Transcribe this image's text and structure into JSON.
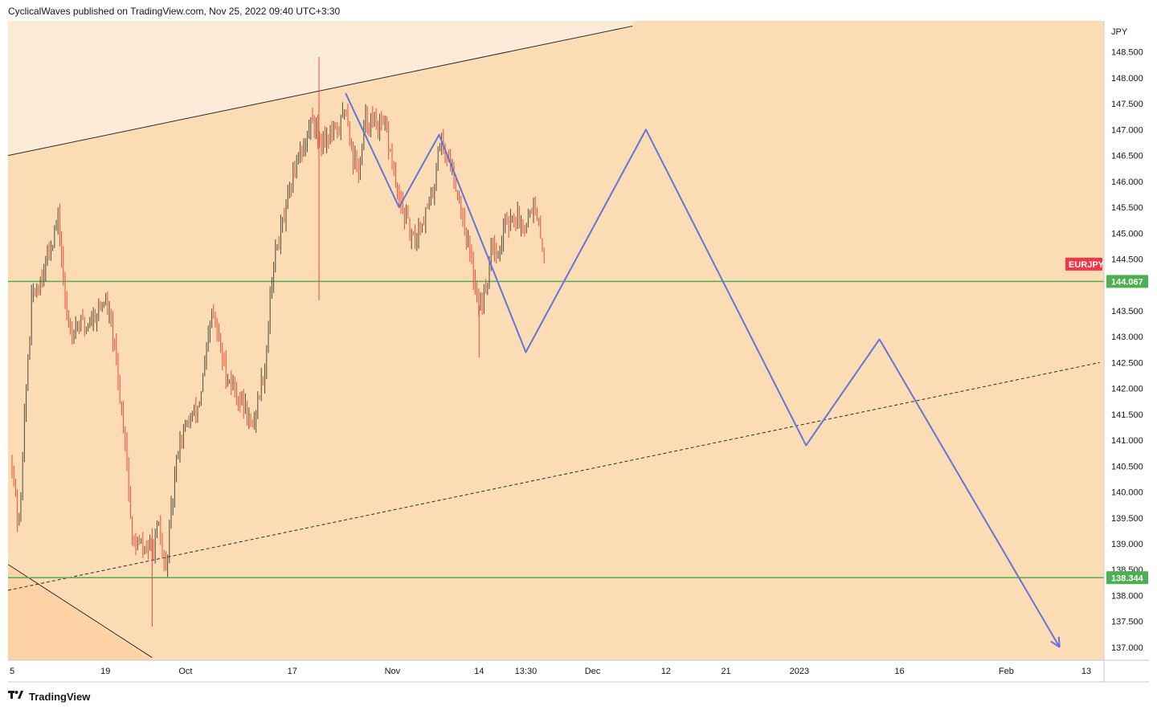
{
  "header": {
    "publisher_line": "CyclicalWaves published on TradingView.com, Nov 25, 2022 09:40 UTC+3:30"
  },
  "footer": {
    "brand": "TradingView"
  },
  "colors": {
    "plot_bg": "#fbdcb4",
    "channel_above": "#fcebd9",
    "channel_below": "#fdd2a4",
    "up_candle": "#4a4a3e",
    "down_candle": "#f04a36",
    "projection": "#6474d8",
    "level_line": "#4caf50",
    "symbol_badge": "#f23645",
    "level_badge": "#4caf50"
  },
  "chart_data": {
    "type": "candlestick",
    "symbol": "EURJPY",
    "currency_label": "JPY",
    "y_range": [
      136.75,
      149.1
    ],
    "y_ticks": [
      "148.500",
      "148.000",
      "147.500",
      "147.000",
      "146.500",
      "146.000",
      "145.500",
      "145.000",
      "144.500",
      "143.500",
      "143.000",
      "142.500",
      "142.000",
      "141.500",
      "141.000",
      "140.500",
      "140.000",
      "139.500",
      "139.000",
      "138.500",
      "138.000",
      "137.500",
      "137.000"
    ],
    "x_ticks": [
      "5",
      "19",
      "Oct",
      "17",
      "Nov",
      "14",
      "13:30",
      "Dec",
      "12",
      "21",
      "2023",
      "16",
      "Feb",
      "13"
    ],
    "price_path": [
      {
        "x": "Sep 5",
        "y": 140.6
      },
      {
        "x": "Sep 6",
        "y": 139.2
      },
      {
        "x": "Sep 7",
        "y": 141.8
      },
      {
        "x": "Sep 8",
        "y": 143.8
      },
      {
        "x": "Sep 9",
        "y": 144.0
      },
      {
        "x": "Sep 12",
        "y": 145.3
      },
      {
        "x": "Sep 13",
        "y": 143.5
      },
      {
        "x": "Sep 14",
        "y": 143.1
      },
      {
        "x": "Sep 15",
        "y": 143.3
      },
      {
        "x": "Sep 16",
        "y": 143.2
      },
      {
        "x": "Sep 19",
        "y": 143.7
      },
      {
        "x": "Sep 20",
        "y": 143.1
      },
      {
        "x": "Sep 21",
        "y": 142.0
      },
      {
        "x": "Sep 22",
        "y": 141.0
      },
      {
        "x": "Sep 23",
        "y": 139.0
      },
      {
        "x": "Sep 26",
        "y": 138.9
      },
      {
        "x": "Sep 27",
        "y": 139.3
      },
      {
        "x": "Sep 28",
        "y": 138.4
      },
      {
        "x": "Sep 29",
        "y": 139.8
      },
      {
        "x": "Sep 30",
        "y": 141.0
      },
      {
        "x": "Oct 3",
        "y": 141.7
      },
      {
        "x": "Oct 4",
        "y": 142.5
      },
      {
        "x": "Oct 5",
        "y": 143.5
      },
      {
        "x": "Oct 6",
        "y": 142.9
      },
      {
        "x": "Oct 7",
        "y": 142.3
      },
      {
        "x": "Oct 10",
        "y": 141.6
      },
      {
        "x": "Oct 11",
        "y": 141.2
      },
      {
        "x": "Oct 12",
        "y": 141.9
      },
      {
        "x": "Oct 13",
        "y": 142.5
      },
      {
        "x": "Oct 14",
        "y": 144.3
      },
      {
        "x": "Oct 17",
        "y": 146.0
      },
      {
        "x": "Oct 18",
        "y": 146.6
      },
      {
        "x": "Oct 19",
        "y": 146.7
      },
      {
        "x": "Oct 20",
        "y": 147.3
      },
      {
        "x": "Oct 21",
        "y": 146.8
      },
      {
        "x": "Oct 24",
        "y": 147.0
      },
      {
        "x": "Oct 25",
        "y": 147.5
      },
      {
        "x": "Oct 26",
        "y": 146.5
      },
      {
        "x": "Oct 27",
        "y": 146.2
      },
      {
        "x": "Oct 28",
        "y": 147.2
      },
      {
        "x": "Oct 31",
        "y": 147.0
      },
      {
        "x": "Nov 1",
        "y": 146.3
      },
      {
        "x": "Nov 2",
        "y": 145.6
      },
      {
        "x": "Nov 3",
        "y": 145.3
      },
      {
        "x": "Nov 4",
        "y": 144.8
      },
      {
        "x": "Nov 7",
        "y": 145.7
      },
      {
        "x": "Nov 8",
        "y": 146.8
      },
      {
        "x": "Nov 9",
        "y": 146.6
      },
      {
        "x": "Nov 10",
        "y": 146.2
      },
      {
        "x": "Nov 11",
        "y": 145.7
      },
      {
        "x": "Nov 14",
        "y": 143.6
      },
      {
        "x": "Nov 15",
        "y": 143.9
      },
      {
        "x": "Nov 16",
        "y": 144.9
      },
      {
        "x": "Nov 17",
        "y": 144.6
      },
      {
        "x": "Nov 18",
        "y": 145.3
      },
      {
        "x": "Nov 21",
        "y": 145.2
      },
      {
        "x": "Nov 22",
        "y": 145.6
      },
      {
        "x": "Nov 23",
        "y": 145.0
      },
      {
        "x": "Nov 24",
        "y": 144.4
      }
    ],
    "projection_path": [
      {
        "x": "Oct 25",
        "y": 147.7
      },
      {
        "x": "Nov 2",
        "y": 145.5
      },
      {
        "x": "Nov 8",
        "y": 146.9
      },
      {
        "x": "Nov 21",
        "y": 142.7
      },
      {
        "x": "Dec 9",
        "y": 147.0
      },
      {
        "x": "Jan 2",
        "y": 140.9
      },
      {
        "x": "Jan 13",
        "y": 142.95
      },
      {
        "x": "Feb 9",
        "y": 137.0
      }
    ],
    "channel_upper": [
      {
        "x": "Sep 5",
        "y": 146.5
      },
      {
        "x": "Dec 7",
        "y": 149.0
      }
    ],
    "channel_lower": [
      {
        "x": "Sep 5",
        "y": 138.1
      },
      {
        "x": "Feb 15",
        "y": 142.5
      }
    ],
    "diagonal_left": [
      {
        "x": "Sep 5",
        "y": 138.6
      },
      {
        "x": "Sep 26",
        "y": 136.8
      }
    ],
    "levels": [
      {
        "value": 144.067,
        "label": "144.067"
      },
      {
        "value": 138.344,
        "label": "138.344"
      }
    ],
    "symbol_badge": {
      "label": "EURJPY",
      "value": 144.4
    },
    "grid": false
  }
}
